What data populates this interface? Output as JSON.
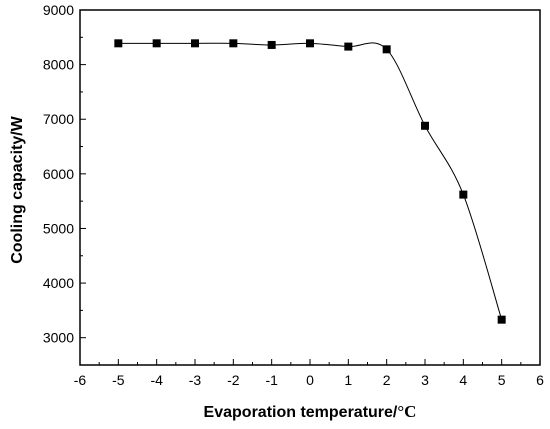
{
  "chart_data": {
    "type": "line",
    "title": "",
    "xlabel": "Evaporation temperature/",
    "xlabel_unit": "°C",
    "ylabel": "Cooling capacity/W",
    "xlim": [
      -6,
      6
    ],
    "ylim": [
      2500,
      9000
    ],
    "x_ticks": [
      -6,
      -5,
      -4,
      -3,
      -2,
      -1,
      0,
      1,
      2,
      3,
      4,
      5,
      6
    ],
    "y_ticks": [
      3000,
      4000,
      5000,
      6000,
      7000,
      8000,
      9000
    ],
    "grid": false,
    "marker": "square",
    "smooth": true,
    "color": "#000000",
    "x": [
      -5,
      -4,
      -3,
      -2,
      -1,
      0,
      1,
      2,
      3,
      4,
      5
    ],
    "values": [
      8390,
      8390,
      8390,
      8390,
      8360,
      8390,
      8330,
      8280,
      6880,
      5620,
      3330
    ]
  }
}
